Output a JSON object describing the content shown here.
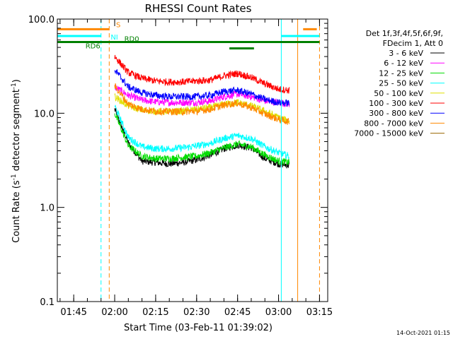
{
  "chart_data": {
    "type": "line",
    "title": "RHESSI Count Rates",
    "xlabel": "Start Time (03-Feb-11 01:39:02)",
    "ylabel": "Count Rate (s⁻¹ detector segment⁻¹)",
    "ylabel_parts": [
      "Count Rate (s",
      "-1",
      " detector segment",
      "-1",
      ")"
    ],
    "y_scale": "log",
    "ylim": [
      0.1,
      100
    ],
    "y_tick_labels": [
      "0.1",
      "1.0",
      "10.0",
      "100.0"
    ],
    "x_axis_hhmm": {
      "start": "01:39",
      "end": "03:18"
    },
    "x_tick_labels": [
      "01:45",
      "02:00",
      "02:15",
      "02:30",
      "02:45",
      "03:00",
      "03:15"
    ],
    "grid": false,
    "legend_placement": "top-right outside plot",
    "legend_header": [
      "Det 1f,3f,4f,5f,6f,9f,",
      "FDecim 1, Att 0"
    ],
    "timestamp": "14-Oct-2021 01:15",
    "series": [
      {
        "name": "3 - 6 keV",
        "color": "#000000",
        "x": [
          "02:00",
          "02:05",
          "02:10",
          "02:15",
          "02:20",
          "02:25",
          "02:30",
          "02:35",
          "02:40",
          "02:45",
          "02:50",
          "02:55",
          "03:00",
          "03:04"
        ],
        "y": [
          11.0,
          4.8,
          3.1,
          3.0,
          2.9,
          3.0,
          3.2,
          3.6,
          4.2,
          4.6,
          4.3,
          3.3,
          2.9,
          2.8
        ]
      },
      {
        "name": "6 - 12 keV",
        "color": "#ff00ff",
        "x": [
          "02:00",
          "02:05",
          "02:10",
          "02:15",
          "02:20",
          "02:25",
          "02:30",
          "02:35",
          "02:40",
          "02:45",
          "02:50",
          "02:55",
          "03:00",
          "03:04"
        ],
        "y": [
          19.0,
          15.5,
          13.8,
          13.2,
          13.0,
          13.0,
          13.0,
          13.5,
          15.0,
          16.0,
          15.0,
          13.5,
          13.0,
          12.5
        ]
      },
      {
        "name": "12 - 25 keV",
        "color": "#00dd00",
        "x": [
          "02:00",
          "02:05",
          "02:10",
          "02:15",
          "02:20",
          "02:25",
          "02:30",
          "02:35",
          "02:40",
          "02:45",
          "02:50",
          "02:55",
          "03:00",
          "03:04"
        ],
        "y": [
          10.0,
          4.5,
          3.5,
          3.3,
          3.3,
          3.4,
          3.5,
          3.8,
          4.3,
          4.7,
          4.4,
          3.6,
          3.1,
          3.0
        ]
      },
      {
        "name": "25 - 50 keV",
        "color": "#00ffff",
        "x": [
          "02:00",
          "02:05",
          "02:10",
          "02:15",
          "02:20",
          "02:25",
          "02:30",
          "02:35",
          "02:40",
          "02:45",
          "02:50",
          "02:55",
          "03:00",
          "03:04"
        ],
        "y": [
          12.0,
          5.5,
          4.4,
          4.2,
          4.2,
          4.3,
          4.5,
          4.8,
          5.4,
          5.8,
          5.4,
          4.4,
          3.8,
          3.5
        ]
      },
      {
        "name": "50 - 100 keV",
        "color": "#e0e000",
        "x": [
          "02:00",
          "02:05",
          "02:10",
          "02:15",
          "02:20",
          "02:25",
          "02:30",
          "02:35",
          "02:40",
          "02:45",
          "02:50",
          "02:55",
          "03:00",
          "03:04"
        ],
        "y": [
          15.0,
          12.0,
          10.8,
          10.5,
          10.4,
          10.6,
          11.0,
          11.5,
          12.5,
          13.0,
          12.0,
          10.5,
          9.0,
          8.2
        ]
      },
      {
        "name": "100 - 300 keV",
        "color": "#ff0000",
        "x": [
          "02:00",
          "02:05",
          "02:10",
          "02:15",
          "02:20",
          "02:25",
          "02:30",
          "02:35",
          "02:40",
          "02:45",
          "02:50",
          "02:55",
          "03:00",
          "03:04"
        ],
        "y": [
          40.0,
          27.0,
          23.5,
          22.0,
          21.5,
          21.5,
          22.0,
          22.5,
          25.0,
          26.5,
          24.0,
          20.5,
          18.0,
          17.5
        ]
      },
      {
        "name": "300 - 800 keV",
        "color": "#0000ff",
        "x": [
          "02:00",
          "02:05",
          "02:10",
          "02:15",
          "02:20",
          "02:25",
          "02:30",
          "02:35",
          "02:40",
          "02:45",
          "02:50",
          "02:55",
          "03:00",
          "03:04"
        ],
        "y": [
          29.0,
          19.0,
          16.5,
          15.5,
          15.0,
          15.0,
          15.0,
          15.5,
          17.0,
          17.5,
          16.0,
          14.0,
          13.0,
          12.8
        ]
      },
      {
        "name": "800 - 7000 keV",
        "color": "#ff8800",
        "x": [
          "02:00",
          "02:05",
          "02:10",
          "02:15",
          "02:20",
          "02:25",
          "02:30",
          "02:35",
          "02:40",
          "02:45",
          "02:50",
          "02:55",
          "03:00",
          "03:04"
        ],
        "y": [
          19.5,
          12.5,
          11.0,
          10.5,
          10.4,
          10.4,
          10.5,
          11.0,
          12.2,
          12.8,
          11.5,
          9.8,
          8.6,
          8.1
        ]
      },
      {
        "name": "7000 - 15000 keV",
        "color": "#996600",
        "x": [],
        "y": []
      }
    ],
    "flag_bars": [
      {
        "label": "S",
        "label_at": "02:00",
        "color": "#ff8800",
        "level": 78.0,
        "segments": [
          [
            "01:39",
            "01:58"
          ],
          [
            "03:09",
            "03:14"
          ]
        ]
      },
      {
        "label": "NI",
        "label_at": "01:58",
        "color": "#00ffff",
        "level": 66.0,
        "segments": [
          [
            "01:39",
            "01:55"
          ],
          [
            "03:01",
            "03:15"
          ]
        ]
      },
      {
        "label": "RD6",
        "label_at": "01:55",
        "color": "#008000",
        "level": 57.0,
        "segments": [
          [
            "01:39",
            "03:15"
          ]
        ]
      },
      {
        "label": "RD0",
        "label_at": "02:03",
        "color": "#008000",
        "level": 57.0,
        "segments": [
          [
            "02:00",
            "02:42"
          ],
          [
            "02:42",
            "02:51"
          ],
          [
            "02:51",
            "03:15"
          ]
        ]
      }
    ],
    "vertical_markers": [
      {
        "time": "01:39",
        "color": "#00ffff",
        "style": "solid"
      },
      {
        "time": "01:55",
        "color": "#00ffff",
        "style": "dashed"
      },
      {
        "time": "01:58",
        "color": "#ff8800",
        "style": "dashed"
      },
      {
        "time": "03:01",
        "color": "#00ffff",
        "style": "solid"
      },
      {
        "time": "03:07",
        "color": "#ff8800",
        "style": "solid"
      },
      {
        "time": "03:15",
        "color": "#ff8800",
        "style": "dashed"
      }
    ]
  }
}
